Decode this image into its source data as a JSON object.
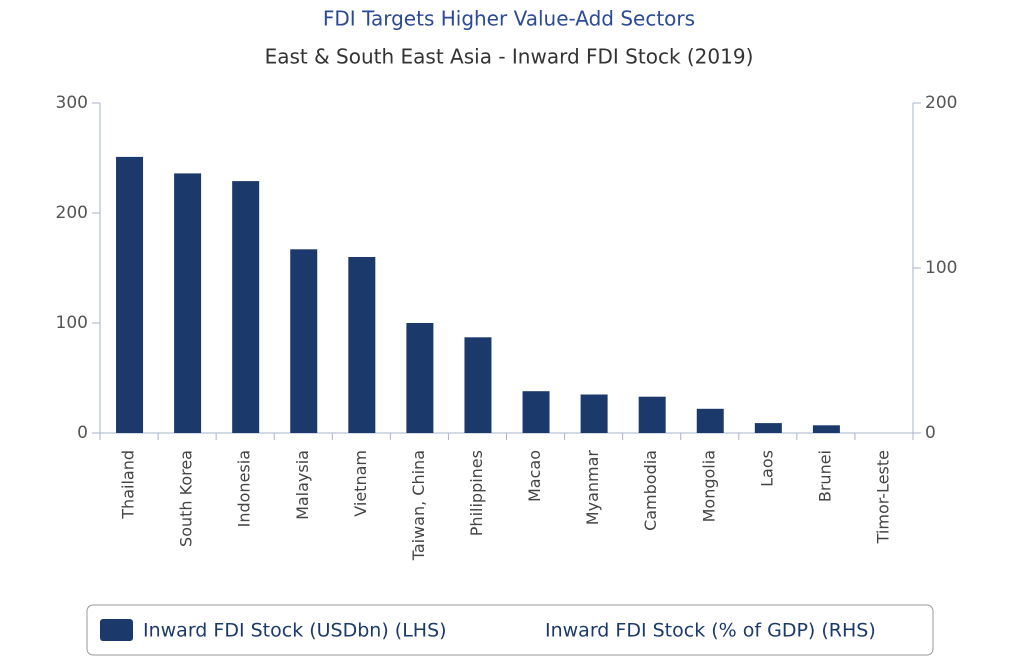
{
  "chart_data": {
    "type": "bar",
    "title": "FDI Targets Higher Value-Add Sectors",
    "subtitle": "East & South East Asia - Inward FDI Stock (2019)",
    "categories": [
      "Thailand",
      "South Korea",
      "Indonesia",
      "Malaysia",
      "Vietnam",
      "Taiwan, China",
      "Philippines",
      "Macao",
      "Myanmar",
      "Cambodia",
      "Mongolia",
      "Laos",
      "Brunei",
      "Timor-Leste"
    ],
    "series": [
      {
        "name": "Inward FDI Stock (USDbn) (LHS)",
        "color": "#1b3a6b",
        "values": [
          251,
          236,
          229,
          167,
          160,
          100,
          87,
          38,
          35,
          33,
          22,
          9,
          7,
          0
        ]
      },
      {
        "name": "Inward FDI Stock (% of GDP) (RHS)",
        "axis": "y2",
        "values": [
          null,
          null,
          null,
          null,
          null,
          null,
          null,
          null,
          null,
          null,
          null,
          null,
          null,
          null
        ]
      }
    ],
    "ylim": [
      0,
      300
    ],
    "yticks": [
      0,
      100,
      200,
      300
    ],
    "y2lim": [
      0,
      200
    ],
    "y2ticks": [
      0,
      100,
      200
    ]
  }
}
